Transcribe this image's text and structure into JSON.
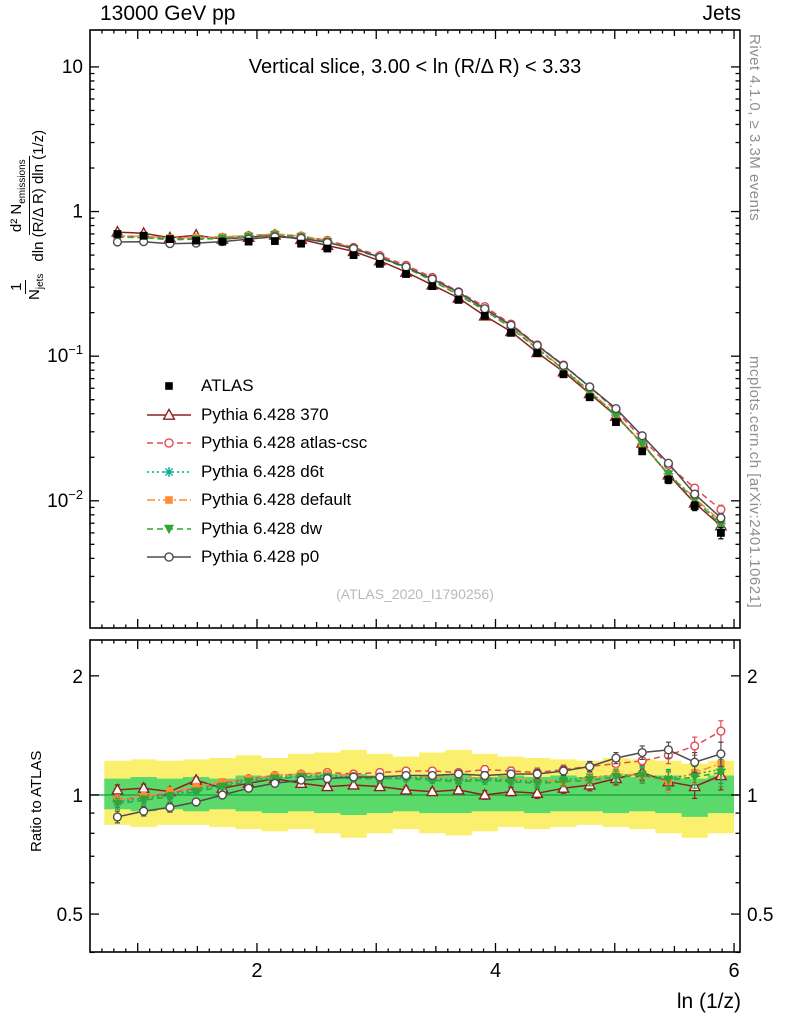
{
  "header": {
    "left": "13000 GeV pp",
    "right": "Jets"
  },
  "panel_title": "Vertical slice, 3.00 < ln (R/Δ R) < 3.33",
  "watermark": "(ATLAS_2020_I1790256)",
  "side_text_top": "Rivet 4.1.0, ≥ 3.3M events",
  "side_text_bottom": "mcplots.cern.ch [arXiv:2401.10621]",
  "ratio_label": "Ratio to ATLAS",
  "xlabel": "ln (1/z)",
  "ylabel": {
    "one": "1",
    "n": "N",
    "n_sub": "jets",
    "num": "d² N",
    "num_sub": "emissions",
    "den": "dln (R/Δ R) dln (1/z)"
  },
  "chart_data": {
    "type": "line",
    "bin_half_width": 0.11,
    "x": [
      0.83,
      1.05,
      1.27,
      1.49,
      1.71,
      1.93,
      2.15,
      2.37,
      2.59,
      2.81,
      3.03,
      3.25,
      3.47,
      3.69,
      3.91,
      4.13,
      4.35,
      4.57,
      4.79,
      5.01,
      5.23,
      5.45,
      5.67,
      5.89
    ],
    "atlas": {
      "label": "ATLAS",
      "color": "#000000",
      "marker": "square-filled",
      "values": [
        0.7,
        0.68,
        0.645,
        0.63,
        0.62,
        0.62,
        0.625,
        0.6,
        0.555,
        0.5,
        0.435,
        0.37,
        0.305,
        0.245,
        0.19,
        0.145,
        0.105,
        0.075,
        0.052,
        0.035,
        0.022,
        0.014,
        0.0092,
        0.006
      ],
      "rel_err": [
        0.03,
        0.025,
        0.025,
        0.02,
        0.02,
        0.02,
        0.02,
        0.02,
        0.02,
        0.02,
        0.02,
        0.02,
        0.02,
        0.02,
        0.025,
        0.025,
        0.03,
        0.03,
        0.035,
        0.04,
        0.05,
        0.06,
        0.07,
        0.09
      ]
    },
    "series": [
      {
        "name": "Pythia 6.428 370",
        "color": "#8b2222",
        "marker": "triangle-open",
        "line_style": "solid",
        "ratio": [
          1.03,
          1.04,
          1.02,
          1.09,
          1.04,
          1.07,
          1.1,
          1.07,
          1.05,
          1.06,
          1.05,
          1.03,
          1.02,
          1.03,
          1.0,
          1.02,
          1.01,
          1.04,
          1.06,
          1.1,
          1.14,
          1.08,
          1.05,
          1.12
        ]
      },
      {
        "name": "Pythia 6.428 atlas-csc",
        "color": "#e24a52",
        "marker": "circle-open",
        "line_style": "dashed",
        "ratio": [
          0.97,
          0.99,
          1.01,
          1.04,
          1.07,
          1.1,
          1.12,
          1.13,
          1.14,
          1.13,
          1.14,
          1.15,
          1.15,
          1.14,
          1.16,
          1.15,
          1.14,
          1.16,
          1.18,
          1.2,
          1.22,
          1.26,
          1.33,
          1.45
        ]
      },
      {
        "name": "Pythia 6.428 d6t",
        "color": "#00a88e",
        "marker": "star",
        "line_style": "short-dashed",
        "ratio": [
          0.96,
          0.98,
          1.0,
          1.03,
          1.06,
          1.09,
          1.11,
          1.12,
          1.12,
          1.11,
          1.1,
          1.11,
          1.1,
          1.09,
          1.1,
          1.09,
          1.08,
          1.09,
          1.11,
          1.12,
          1.13,
          1.1,
          1.13,
          1.16
        ]
      },
      {
        "name": "Pythia 6.428 default",
        "color": "#ff8b33",
        "marker": "square-filled",
        "line_style": "dash-dotted",
        "ratio": [
          0.97,
          0.99,
          1.02,
          1.05,
          1.08,
          1.1,
          1.12,
          1.13,
          1.13,
          1.12,
          1.11,
          1.12,
          1.11,
          1.1,
          1.11,
          1.1,
          1.09,
          1.08,
          1.1,
          1.13,
          1.12,
          1.08,
          1.14,
          1.2
        ]
      },
      {
        "name": "Pythia 6.428 dw",
        "color": "#33a532",
        "marker": "triangle-down-filled",
        "line_style": "dashed",
        "ratio": [
          0.95,
          0.97,
          0.99,
          1.02,
          1.05,
          1.08,
          1.1,
          1.11,
          1.11,
          1.1,
          1.1,
          1.1,
          1.09,
          1.08,
          1.09,
          1.08,
          1.07,
          1.08,
          1.09,
          1.11,
          1.12,
          1.09,
          1.11,
          1.14
        ]
      },
      {
        "name": "Pythia 6.428 p0",
        "color": "#4d4d4d",
        "marker": "circle-open",
        "line_style": "solid",
        "ratio": [
          0.88,
          0.91,
          0.93,
          0.96,
          1.0,
          1.04,
          1.07,
          1.09,
          1.1,
          1.11,
          1.11,
          1.12,
          1.12,
          1.13,
          1.12,
          1.13,
          1.13,
          1.15,
          1.18,
          1.24,
          1.28,
          1.3,
          1.21,
          1.27
        ]
      }
    ],
    "bands": {
      "yellow": {
        "color": "#faf06e",
        "lo": [
          0.84,
          0.83,
          0.84,
          0.84,
          0.83,
          0.82,
          0.81,
          0.82,
          0.8,
          0.78,
          0.8,
          0.82,
          0.8,
          0.79,
          0.81,
          0.83,
          0.82,
          0.83,
          0.84,
          0.83,
          0.82,
          0.8,
          0.78,
          0.8
        ],
        "hi": [
          1.22,
          1.23,
          1.22,
          1.23,
          1.24,
          1.26,
          1.24,
          1.27,
          1.28,
          1.3,
          1.27,
          1.25,
          1.28,
          1.3,
          1.27,
          1.25,
          1.24,
          1.23,
          1.22,
          1.24,
          1.23,
          1.22,
          1.2,
          1.22
        ]
      },
      "green": {
        "color": "#5cd96b",
        "lo": [
          0.92,
          0.91,
          0.92,
          0.91,
          0.92,
          0.91,
          0.9,
          0.91,
          0.9,
          0.89,
          0.9,
          0.91,
          0.9,
          0.9,
          0.91,
          0.91,
          0.9,
          0.91,
          0.91,
          0.9,
          0.91,
          0.9,
          0.88,
          0.9
        ],
        "hi": [
          1.1,
          1.11,
          1.1,
          1.11,
          1.1,
          1.12,
          1.11,
          1.12,
          1.13,
          1.13,
          1.12,
          1.11,
          1.12,
          1.13,
          1.11,
          1.12,
          1.11,
          1.12,
          1.11,
          1.12,
          1.11,
          1.12,
          1.1,
          1.12
        ]
      },
      "unity_line_color": "#1fa83c"
    },
    "axes": {
      "x": {
        "min": 0.6,
        "max": 6.05,
        "ticks": [
          2,
          4,
          6
        ]
      },
      "y_main": {
        "scale": "log",
        "min": 0.00132,
        "max": 18,
        "ticks": [
          {
            "v": 10,
            "label": "10"
          },
          {
            "v": 1,
            "label": "1"
          },
          {
            "v": 0.1,
            "label": "10^-1"
          },
          {
            "v": 0.01,
            "label": "10^-2"
          }
        ]
      },
      "y_ratio": {
        "scale": "log",
        "min": 0.401,
        "max": 2.464,
        "ticks": [
          {
            "v": 2,
            "label": "2"
          },
          {
            "v": 1,
            "label": "1"
          },
          {
            "v": 0.5,
            "label": "0.5"
          }
        ],
        "minor_ticks": [
          0.4,
          0.6,
          0.7,
          0.8,
          0.9
        ]
      }
    }
  }
}
